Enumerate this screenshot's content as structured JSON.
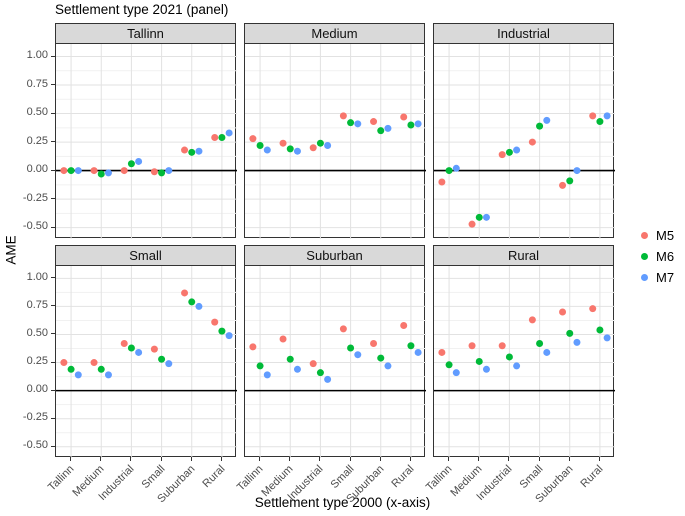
{
  "title": "Settlement type 2021 (panel)",
  "axes": {
    "x_title": "Settlement type 2000 (x-axis)",
    "y_title": "AME",
    "x_categories": [
      "Tallinn",
      "Medium",
      "Industrial",
      "Small",
      "Suburban",
      "Rural"
    ],
    "y_tick_labels": [
      "1.00",
      "0.75",
      "0.50",
      "0.25",
      "0.00",
      "-0.25",
      "-0.50"
    ]
  },
  "legend": {
    "items": [
      {
        "label": "M5",
        "color": "#F8766D"
      },
      {
        "label": "M6",
        "color": "#00BA38"
      },
      {
        "label": "M7",
        "color": "#619CFF"
      }
    ]
  },
  "styles": {
    "strip_bg": "#D9D9D9",
    "grid_major": "#E2E2E2",
    "grid_minor": "#F1F1F1",
    "zero_line": "#000000"
  },
  "chart_data": {
    "type": "scatter",
    "title": "Settlement type 2021 (panel)",
    "xlabel": "Settlement type 2000 (x-axis)",
    "ylabel": "AME",
    "categories": [
      "Tallinn",
      "Medium",
      "Industrial",
      "Small",
      "Suburban",
      "Rural"
    ],
    "ylim": [
      -0.6,
      1.11
    ],
    "y_major_ticks": [
      1.0,
      0.75,
      0.5,
      0.25,
      0.0,
      -0.25,
      -0.5
    ],
    "y_minor_ticks": [
      0.875,
      0.625,
      0.375,
      0.125,
      -0.125,
      -0.375
    ],
    "reference_line_y": 0,
    "grid": true,
    "legend_position": "right",
    "facets": [
      {
        "name": "Tallinn",
        "series": [
          {
            "name": "M5",
            "color": "#F8766D",
            "values": [
              0.0,
              0.0,
              0.0,
              -0.01,
              0.18,
              0.29
            ]
          },
          {
            "name": "M6",
            "color": "#00BA38",
            "values": [
              0.0,
              -0.03,
              0.06,
              -0.02,
              0.16,
              0.29
            ]
          },
          {
            "name": "M7",
            "color": "#619CFF",
            "values": [
              0.0,
              -0.02,
              0.08,
              0.0,
              0.17,
              0.33
            ]
          }
        ]
      },
      {
        "name": "Medium",
        "series": [
          {
            "name": "M5",
            "color": "#F8766D",
            "values": [
              0.28,
              0.24,
              0.2,
              0.48,
              0.43,
              0.47
            ]
          },
          {
            "name": "M6",
            "color": "#00BA38",
            "values": [
              0.22,
              0.19,
              0.24,
              0.42,
              0.35,
              0.4
            ]
          },
          {
            "name": "M7",
            "color": "#619CFF",
            "values": [
              0.18,
              0.17,
              0.22,
              0.41,
              0.37,
              0.41
            ]
          }
        ]
      },
      {
        "name": "Industrial",
        "series": [
          {
            "name": "M5",
            "color": "#F8766D",
            "values": [
              -0.1,
              -0.47,
              0.14,
              0.25,
              -0.13,
              0.48
            ]
          },
          {
            "name": "M6",
            "color": "#00BA38",
            "values": [
              0.0,
              -0.41,
              0.16,
              0.39,
              -0.09,
              0.43
            ]
          },
          {
            "name": "M7",
            "color": "#619CFF",
            "values": [
              0.02,
              -0.41,
              0.18,
              0.44,
              0.0,
              0.48
            ]
          }
        ]
      },
      {
        "name": "Small",
        "series": [
          {
            "name": "M5",
            "color": "#F8766D",
            "values": [
              0.25,
              0.25,
              0.42,
              0.37,
              0.87,
              0.61
            ]
          },
          {
            "name": "M6",
            "color": "#00BA38",
            "values": [
              0.19,
              0.19,
              0.38,
              0.28,
              0.79,
              0.53
            ]
          },
          {
            "name": "M7",
            "color": "#619CFF",
            "values": [
              0.14,
              0.14,
              0.34,
              0.24,
              0.75,
              0.49
            ]
          }
        ]
      },
      {
        "name": "Suburban",
        "series": [
          {
            "name": "M5",
            "color": "#F8766D",
            "values": [
              0.39,
              0.46,
              0.24,
              0.55,
              0.42,
              0.58
            ]
          },
          {
            "name": "M6",
            "color": "#00BA38",
            "values": [
              0.22,
              0.28,
              0.16,
              0.38,
              0.29,
              0.4
            ]
          },
          {
            "name": "M7",
            "color": "#619CFF",
            "values": [
              0.14,
              0.19,
              0.1,
              0.32,
              0.22,
              0.34
            ]
          }
        ]
      },
      {
        "name": "Rural",
        "series": [
          {
            "name": "M5",
            "color": "#F8766D",
            "values": [
              0.34,
              0.4,
              0.4,
              0.63,
              0.7,
              0.73
            ]
          },
          {
            "name": "M6",
            "color": "#00BA38",
            "values": [
              0.23,
              0.26,
              0.3,
              0.42,
              0.51,
              0.54
            ]
          },
          {
            "name": "M7",
            "color": "#619CFF",
            "values": [
              0.16,
              0.19,
              0.22,
              0.34,
              0.43,
              0.47
            ]
          }
        ]
      }
    ]
  }
}
